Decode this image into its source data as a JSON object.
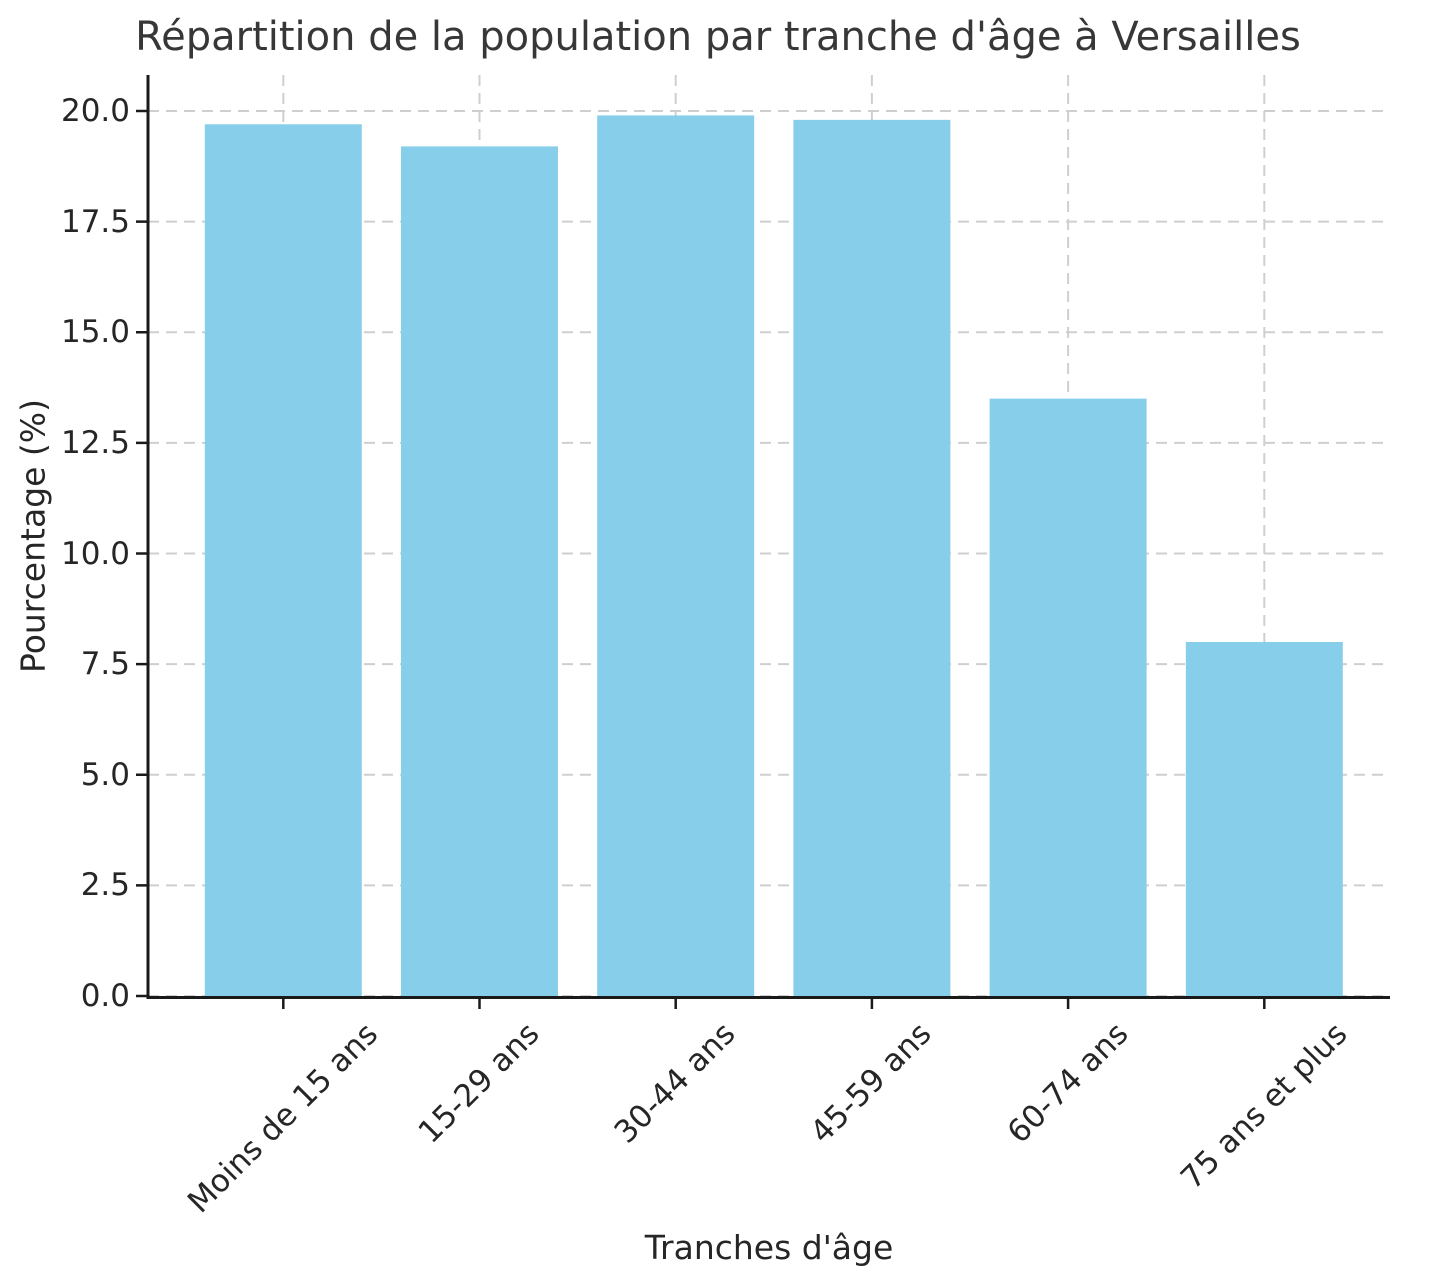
{
  "chart_data": {
    "type": "bar",
    "title": "Répartition de la population par tranche d'âge à Versailles",
    "xlabel": "Tranches d'âge",
    "ylabel": "Pourcentage (%)",
    "categories": [
      "Moins de 15 ans",
      "15-29 ans",
      "30-44 ans",
      "45-59 ans",
      "60-74 ans",
      "75 ans et plus"
    ],
    "values": [
      19.7,
      19.2,
      19.9,
      19.8,
      13.5,
      8.0
    ],
    "ylim": [
      0,
      20.81
    ],
    "yticks": [
      0,
      2.5,
      5,
      7.5,
      10,
      12.5,
      15,
      17.5,
      20
    ],
    "ytick_labels": [
      "0.0",
      "2.5",
      "5.0",
      "7.5",
      "10.0",
      "12.5",
      "15.0",
      "17.5",
      "20.0"
    ],
    "bar_color": "#87CEEB",
    "grid": true,
    "grid_color": "#cfcfcf",
    "axis_color": "#1a1a1a",
    "text_color": "#262626",
    "title_color": "#373737",
    "legend": "none",
    "x_label_rotation_deg": 45
  }
}
